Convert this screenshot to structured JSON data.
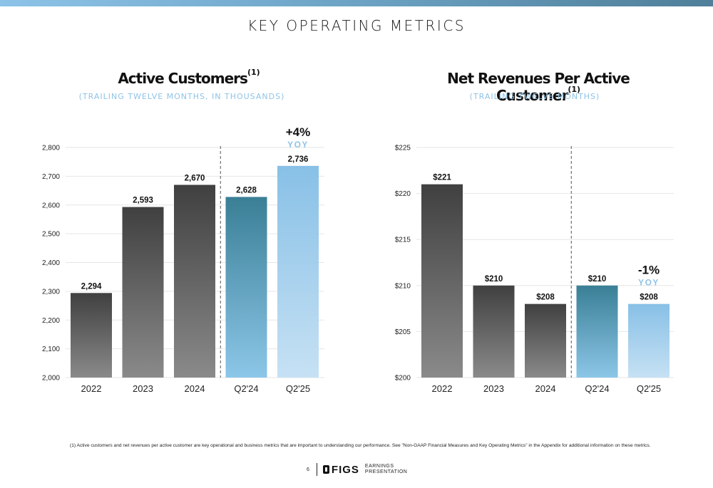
{
  "page": {
    "title": "KEY OPERATING METRICS",
    "footnote": "(1) Active customers and net revenues per active customer are key operational and business metrics that are important to understanding our performance. See \"Non-GAAP Financial Measures and Key Operating Metrics\" in the Appendix for additional information on these metrics.",
    "page_number": "6",
    "brand": "FIGS",
    "deck_line1": "EARNINGS",
    "deck_line2": "PRESENTATION"
  },
  "colors": {
    "dark_bar_top": "#404040",
    "dark_bar_bottom": "#8a8a8a",
    "teal_bar_top": "#3a7f96",
    "teal_bar_bottom": "#8cc6e8",
    "light_bar_top": "#88c0e6",
    "light_bar_bottom": "#c6e1f4",
    "subtitle_blue": "#8fc3e6"
  },
  "chart_data": [
    {
      "type": "bar",
      "title": "Active Customers",
      "title_sup": "(1)",
      "subtitle": "(TRAILING TWELVE MONTHS, IN THOUSANDS)",
      "categories": [
        "2022",
        "2023",
        "2024",
        "Q2'24",
        "Q2'25"
      ],
      "values": [
        2294,
        2593,
        2670,
        2628,
        2736
      ],
      "value_labels": [
        "2,294",
        "2,593",
        "2,670",
        "2,628",
        "2,736"
      ],
      "bar_styles": [
        "dark",
        "dark",
        "dark",
        "teal",
        "light"
      ],
      "ylim": [
        2000,
        2800
      ],
      "yticks": [
        2000,
        2100,
        2200,
        2300,
        2400,
        2500,
        2600,
        2700,
        2800
      ],
      "ytick_labels": [
        "2,000",
        "2,100",
        "2,200",
        "2,300",
        "2,400",
        "2,500",
        "2,600",
        "2,700",
        "2,800"
      ],
      "annotation": {
        "value": "+4%",
        "label": "YOY"
      },
      "separator_after_index": 2,
      "grid": true,
      "xlabel": "",
      "ylabel": ""
    },
    {
      "type": "bar",
      "title": "Net Revenues Per Active Customer",
      "title_sup": "(1)",
      "subtitle": "(TRAILING TWELVE MONTHS)",
      "categories": [
        "2022",
        "2023",
        "2024",
        "Q2'24",
        "Q2'25"
      ],
      "values": [
        221,
        210,
        208,
        210,
        208
      ],
      "value_labels": [
        "$221",
        "$210",
        "$208",
        "$210",
        "$208"
      ],
      "bar_styles": [
        "dark",
        "dark",
        "dark",
        "teal",
        "light"
      ],
      "ylim": [
        200,
        225
      ],
      "yticks": [
        200,
        205,
        210,
        215,
        220,
        225
      ],
      "ytick_labels": [
        "$200",
        "$205",
        "$210",
        "$215",
        "$220",
        "$225"
      ],
      "annotation": {
        "value": "-1%",
        "label": "YOY"
      },
      "separator_after_index": 2,
      "grid": true,
      "xlabel": "",
      "ylabel": ""
    }
  ]
}
